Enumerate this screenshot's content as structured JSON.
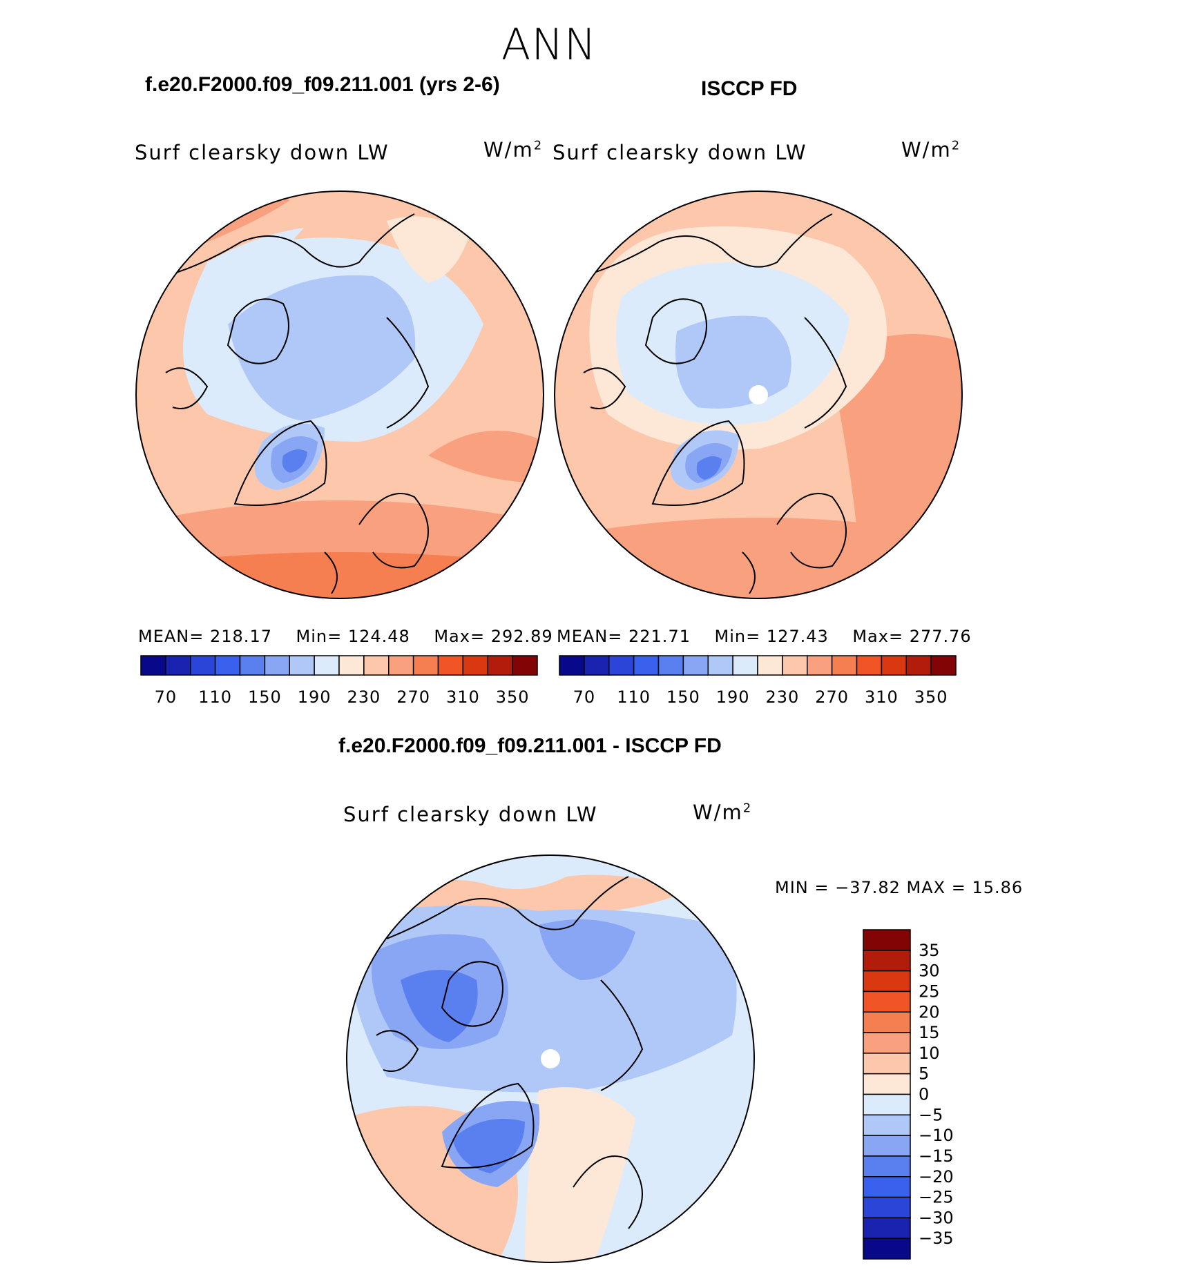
{
  "title": "ANN",
  "panels": [
    {
      "id": "model",
      "title": "f.e20.F2000.f09_f09.211.001 (yrs 2-6)",
      "variable": "Surf clearsky down LW",
      "units": "W/m",
      "units_sup": "2",
      "stats": {
        "mean_label": "MEAN=",
        "mean": "218.17",
        "min_label": "Min=",
        "min": "124.48",
        "max_label": "Max=",
        "max": "292.89"
      }
    },
    {
      "id": "obs",
      "title": "ISCCP FD",
      "variable": "Surf clearsky down LW",
      "units": "W/m",
      "units_sup": "2",
      "stats": {
        "mean_label": "MEAN=",
        "mean": "221.71",
        "min_label": "Min=",
        "min": "127.43",
        "max_label": "Max=",
        "max": "277.76"
      }
    }
  ],
  "diff": {
    "title": "f.e20.F2000.f09_f09.211.001 - ISCCP FD",
    "variable": "Surf clearsky down LW",
    "units": "W/m",
    "units_sup": "2",
    "stats_text": "MIN = −37.82 MAX =   15.86"
  },
  "colorbar_main": {
    "colors": [
      "#08088a",
      "#1a22b0",
      "#2a45d8",
      "#3a60ee",
      "#5a80f0",
      "#88a6f4",
      "#b0c8f8",
      "#dcebfc",
      "#fde7d6",
      "#fcc7aa",
      "#f9a07e",
      "#f67f52",
      "#f25525",
      "#d93810",
      "#b21c0a",
      "#820404"
    ],
    "tick_labels": [
      "70",
      "110",
      "150",
      "190",
      "230",
      "270",
      "310",
      "350"
    ]
  },
  "colorbar_diff": {
    "colors": [
      "#820404",
      "#b21c0a",
      "#d93810",
      "#f25525",
      "#f67f52",
      "#f9a07e",
      "#fcc7aa",
      "#fde7d6",
      "#dcebfc",
      "#b0c8f8",
      "#88a6f4",
      "#5a80f0",
      "#3a60ee",
      "#2a45d8",
      "#1a22b0",
      "#08088a"
    ],
    "tick_labels": [
      "35",
      "30",
      "25",
      "20",
      "15",
      "10",
      "5",
      "0",
      "−5",
      "−10",
      "−15",
      "−20",
      "−25",
      "−30",
      "−35"
    ]
  }
}
